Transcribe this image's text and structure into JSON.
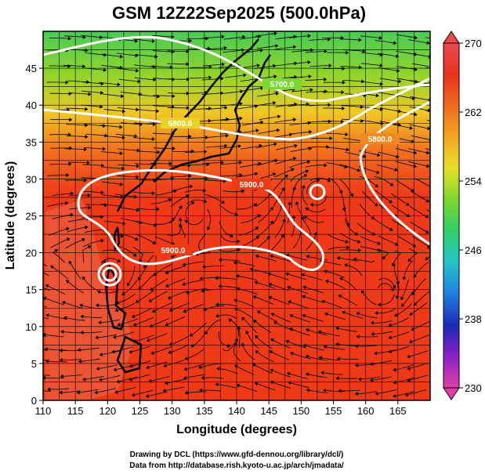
{
  "chart_data": {
    "type": "heatmap",
    "title": "GSM 12Z22Sep2025 (500.0hPa)",
    "xlabel": "Longitude (degrees)",
    "ylabel": "Latitude  (degrees)",
    "xlim": [
      110,
      170
    ],
    "ylim": [
      0,
      50
    ],
    "x_ticks": [
      110,
      115,
      120,
      125,
      130,
      135,
      140,
      145,
      150,
      155,
      160,
      165
    ],
    "y_ticks": [
      0,
      5,
      10,
      15,
      20,
      25,
      30,
      35,
      40,
      45
    ],
    "colorbar": {
      "min": 230,
      "max": 270,
      "ticks": [
        270,
        262,
        254,
        246,
        238,
        230
      ],
      "colors": [
        "#e040a8",
        "#8a20c8",
        "#1a2ab8",
        "#1f7fe0",
        "#22c4c8",
        "#2fcf6a",
        "#7ad82f",
        "#e6e028",
        "#f5a623",
        "#f06a1e",
        "#e8321c",
        "#e84a50"
      ]
    },
    "contours": [
      {
        "label": "5900.0",
        "label2": "5900.0"
      },
      {
        "label": "5800.0"
      },
      {
        "label": "5700.0"
      },
      {
        "label": "5800.0"
      }
    ],
    "features": [
      {
        "name": "typhoon-center",
        "lon": 121.0,
        "lat": 19.5
      },
      {
        "name": "cyclone-center",
        "lon": 152.0,
        "lat": 30.5
      }
    ],
    "credit_line1": "Drawing by DCL (https://www.gfd-dennou.org/library/dcl/)",
    "credit_line2": "Data from http://database.rish.kyoto-u.ac.jp/arch/jmadata/"
  }
}
